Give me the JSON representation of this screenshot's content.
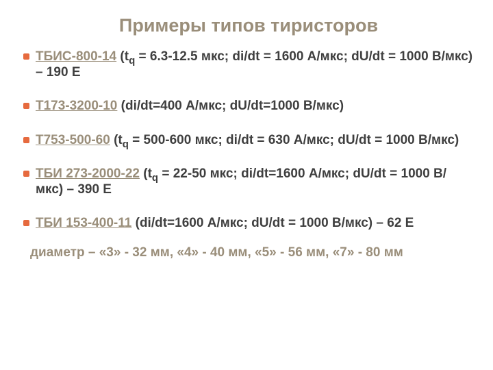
{
  "colors": {
    "title": "#9a8e7a",
    "text": "#3f3f3f",
    "link": "#9a8e7a",
    "bullet": "#e66a3e",
    "note": "#9a8e7a",
    "background": "#ffffff"
  },
  "typography": {
    "title_fontsize": 27,
    "body_fontsize": 19,
    "sub_fontsize": 15,
    "font_family": "Arial"
  },
  "title": "Примеры типов тиристоров",
  "items": [
    {
      "link": "ТБИС-800-14",
      "has_tq": true,
      "tq_prefix": " (t",
      "tq_sub": "q",
      "tq_text": " = 6.3-12.5 мкс; di/dt = 1600 А/мкс;  dU/dt = 1000 В/мкс) – 190 Е",
      "rest": ""
    },
    {
      "link": "Т173-3200-10",
      "has_tq": false,
      "rest": " (di/dt=400 А/мкс;  dU/dt=1000 В/мкс)"
    },
    {
      "link": "Т753-500-60",
      "has_tq": true,
      "tq_prefix": " (t",
      "tq_sub": "q",
      "tq_text": " = 500-600 мкс; di/dt = 630 А/мкс;  dU/dt = 1000 В/мкс)",
      "rest": ""
    },
    {
      "link": "ТБИ 273-2000-22",
      "has_tq": true,
      "tq_prefix": " (t",
      "tq_sub": "q",
      "tq_text": " = 22-50 мкс; di/dt=1600 А/мкс;  dU/dt = 1000 В/мкс) – 390 Е",
      "rest": ""
    },
    {
      "link": "ТБИ 153-400-11",
      "has_tq": false,
      "rest": " (di/dt=1600 А/мкс;  dU/dt = 1000 В/мкс) – 62 Е"
    }
  ],
  "note": "диаметр – «3» - 32 мм, «4» - 40 мм, «5» - 56 мм, «7» - 80 мм"
}
